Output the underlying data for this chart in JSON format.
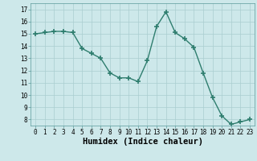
{
  "x": [
    0,
    1,
    2,
    3,
    4,
    5,
    6,
    7,
    8,
    9,
    10,
    11,
    12,
    13,
    14,
    15,
    16,
    17,
    18,
    19,
    20,
    21,
    22,
    23
  ],
  "y": [
    15.0,
    15.1,
    15.2,
    15.2,
    15.1,
    13.8,
    13.4,
    13.0,
    11.8,
    11.4,
    11.4,
    11.1,
    12.8,
    15.6,
    16.8,
    15.1,
    14.6,
    13.9,
    11.8,
    9.8,
    8.3,
    7.6,
    7.8,
    8.0
  ],
  "line_color": "#2e7d6e",
  "marker": "+",
  "marker_size": 4,
  "bg_color": "#cde8ea",
  "grid_color": "#aacdd0",
  "xlabel": "Humidex (Indice chaleur)",
  "xlim": [
    -0.5,
    23.5
  ],
  "ylim": [
    7.5,
    17.5
  ],
  "yticks": [
    8,
    9,
    10,
    11,
    12,
    13,
    14,
    15,
    16,
    17
  ],
  "xticks": [
    0,
    1,
    2,
    3,
    4,
    5,
    6,
    7,
    8,
    9,
    10,
    11,
    12,
    13,
    14,
    15,
    16,
    17,
    18,
    19,
    20,
    21,
    22,
    23
  ],
  "tick_labelsize": 5.5,
  "xlabel_fontsize": 7.5,
  "line_width": 1.0,
  "marker_color": "#2e7d6e"
}
